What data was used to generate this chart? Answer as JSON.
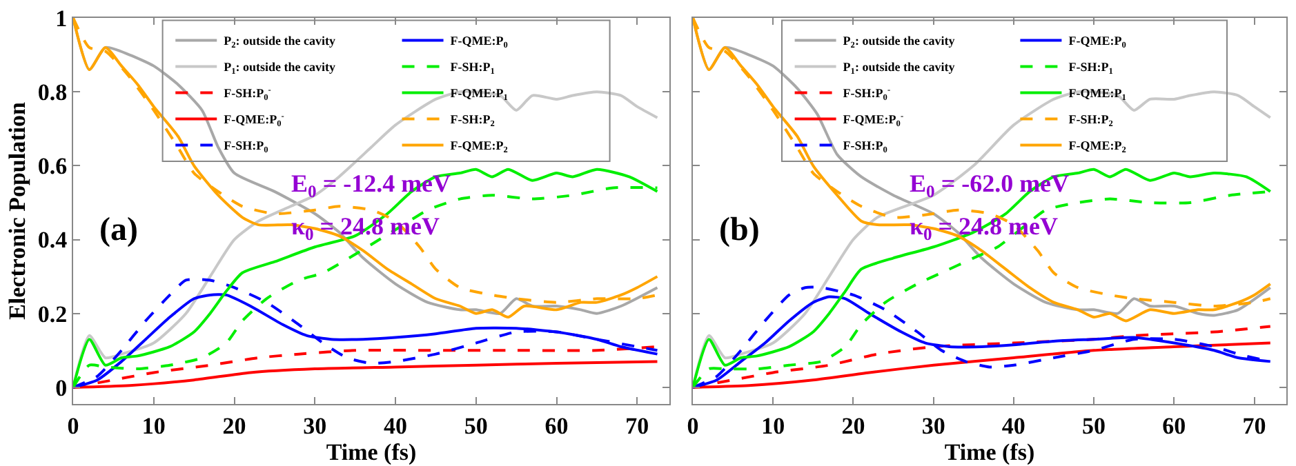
{
  "chart_data": [
    {
      "type": "line",
      "xlabel": "Time (fs)",
      "ylabel": "Electronic Population",
      "xlim": [
        0,
        74
      ],
      "ylim": [
        -0.045,
        1
      ],
      "xticks": [
        0,
        10,
        20,
        30,
        40,
        50,
        60,
        70
      ],
      "yticks": [
        0,
        0.2,
        0.4,
        0.6,
        0.8,
        1
      ],
      "legend": "top",
      "annotations": [
        "E$_{0}$ = -12.4 meV",
        "κ$_{0}$ = 24.8 meV",
        "(a)"
      ],
      "series": [
        {
          "name": "P$_{2}$: outside the cavity",
          "color": "#a8a8a8",
          "line_style": "solid",
          "x": [
            0,
            2,
            4,
            7,
            10,
            13,
            16,
            18,
            20,
            25,
            30,
            33,
            36,
            40,
            44,
            48,
            50,
            53,
            55,
            57,
            60,
            63,
            65,
            68,
            72.5
          ],
          "values": [
            1,
            0.86,
            0.92,
            0.9,
            0.87,
            0.82,
            0.75,
            0.65,
            0.58,
            0.53,
            0.47,
            0.42,
            0.35,
            0.28,
            0.23,
            0.21,
            0.21,
            0.2,
            0.24,
            0.22,
            0.22,
            0.21,
            0.2,
            0.22,
            0.27
          ]
        },
        {
          "name": "P$_{1}$: outside the cavity",
          "color": "#c8c8c8",
          "line_style": "solid",
          "x": [
            0,
            2,
            4,
            6,
            10,
            14,
            17,
            20,
            23,
            27,
            30,
            33,
            37,
            40,
            45,
            48,
            50,
            53,
            55,
            57,
            60,
            62,
            65,
            68,
            70,
            72.5
          ],
          "values": [
            0,
            0.14,
            0.08,
            0.09,
            0.12,
            0.2,
            0.3,
            0.4,
            0.45,
            0.49,
            0.52,
            0.57,
            0.65,
            0.71,
            0.78,
            0.8,
            0.8,
            0.79,
            0.75,
            0.79,
            0.78,
            0.79,
            0.8,
            0.79,
            0.76,
            0.73
          ]
        },
        {
          "name": "F-SH:P$_{0}$$^{-}$",
          "color": "#ff0000",
          "line_style": "dashed",
          "x": [
            0,
            5,
            10,
            17,
            23,
            28,
            35,
            45,
            55,
            65,
            72.5
          ],
          "values": [
            0,
            0.02,
            0.04,
            0.06,
            0.08,
            0.09,
            0.1,
            0.1,
            0.1,
            0.1,
            0.11
          ]
        },
        {
          "name": "F-QME:P$_{0}$$^{-}$",
          "color": "#ff0000",
          "line_style": "solid",
          "x": [
            0,
            7,
            15,
            22,
            30,
            40,
            50,
            60,
            72.5
          ],
          "values": [
            0,
            0.005,
            0.02,
            0.04,
            0.05,
            0.055,
            0.06,
            0.065,
            0.07
          ]
        },
        {
          "name": "F-SH:P$_{0}$",
          "color": "#0000ff",
          "line_style": "dashed",
          "x": [
            0,
            3,
            6,
            9,
            12,
            14,
            17,
            20,
            24,
            28,
            31,
            34,
            37,
            40,
            45,
            50,
            55,
            60,
            65,
            70,
            72.5
          ],
          "values": [
            0,
            0.03,
            0.1,
            0.18,
            0.25,
            0.29,
            0.29,
            0.27,
            0.23,
            0.17,
            0.12,
            0.08,
            0.065,
            0.07,
            0.09,
            0.12,
            0.15,
            0.15,
            0.13,
            0.11,
            0.1
          ]
        },
        {
          "name": "F-QME:P$_{0}$",
          "color": "#0000ff",
          "line_style": "solid",
          "x": [
            0,
            3,
            6,
            9,
            12,
            15,
            17,
            19,
            22,
            26,
            29,
            32,
            36,
            40,
            45,
            50,
            55,
            60,
            65,
            68,
            72.5
          ],
          "values": [
            0,
            0.02,
            0.07,
            0.13,
            0.19,
            0.24,
            0.25,
            0.25,
            0.22,
            0.17,
            0.14,
            0.13,
            0.13,
            0.135,
            0.145,
            0.16,
            0.16,
            0.15,
            0.13,
            0.11,
            0.09
          ]
        },
        {
          "name": "F-SH:P$_{1}$",
          "color": "#00ee00",
          "line_style": "dashed",
          "x": [
            0,
            2,
            4,
            8,
            12,
            16,
            19,
            21,
            24,
            28,
            31,
            35,
            38,
            41,
            44,
            48,
            52,
            57,
            62,
            67,
            72.5
          ],
          "values": [
            0,
            0.06,
            0.055,
            0.05,
            0.06,
            0.08,
            0.12,
            0.18,
            0.24,
            0.29,
            0.31,
            0.36,
            0.4,
            0.44,
            0.48,
            0.51,
            0.52,
            0.51,
            0.52,
            0.54,
            0.54
          ]
        },
        {
          "name": "F-QME:P$_{1}$",
          "color": "#00ee00",
          "line_style": "solid",
          "x": [
            0,
            2,
            4,
            6,
            8,
            12,
            15,
            17,
            19,
            21,
            25,
            30,
            35,
            39,
            42,
            45,
            48,
            50,
            52,
            54,
            57,
            60,
            62,
            65,
            69,
            72.5
          ],
          "values": [
            0,
            0.13,
            0.06,
            0.08,
            0.085,
            0.11,
            0.15,
            0.2,
            0.26,
            0.31,
            0.34,
            0.38,
            0.41,
            0.47,
            0.53,
            0.57,
            0.58,
            0.59,
            0.57,
            0.59,
            0.56,
            0.58,
            0.57,
            0.59,
            0.57,
            0.53
          ]
        },
        {
          "name": "F-SH:P$_{2}$",
          "color": "#ffa500",
          "line_style": "dashed",
          "x": [
            0,
            2,
            4,
            7,
            10,
            13,
            15,
            18,
            21,
            25,
            30,
            33,
            37,
            40,
            43,
            45,
            48,
            52,
            55,
            60,
            65,
            70,
            72.5
          ],
          "values": [
            1,
            0.92,
            0.91,
            0.84,
            0.75,
            0.65,
            0.58,
            0.53,
            0.49,
            0.47,
            0.48,
            0.49,
            0.48,
            0.45,
            0.38,
            0.32,
            0.27,
            0.25,
            0.24,
            0.23,
            0.24,
            0.24,
            0.25
          ]
        },
        {
          "name": "F-QME:P$_{2}$",
          "color": "#ffa500",
          "line_style": "solid",
          "x": [
            0,
            2,
            4,
            6,
            8,
            10,
            13,
            15,
            18,
            21,
            23,
            27,
            30,
            33,
            36,
            39,
            42,
            45,
            48,
            50,
            52,
            54,
            56,
            60,
            63,
            65,
            68,
            70,
            72.5
          ],
          "values": [
            1,
            0.86,
            0.92,
            0.87,
            0.82,
            0.76,
            0.68,
            0.6,
            0.52,
            0.46,
            0.44,
            0.44,
            0.43,
            0.41,
            0.37,
            0.32,
            0.28,
            0.24,
            0.22,
            0.2,
            0.21,
            0.19,
            0.22,
            0.21,
            0.23,
            0.23,
            0.25,
            0.27,
            0.3
          ]
        }
      ]
    },
    {
      "type": "line",
      "xlabel": "Time (fs)",
      "xlim": [
        0,
        74
      ],
      "ylim": [
        -0.045,
        1
      ],
      "xticks": [
        0,
        10,
        20,
        30,
        40,
        50,
        60,
        70
      ],
      "yticks": [
        {
          "value": 0,
          "label": null
        },
        {
          "value": 0.2,
          "label": null
        },
        {
          "value": 0.4,
          "label": null
        },
        {
          "value": 0.6,
          "label": null
        },
        {
          "value": 0.8,
          "label": null
        },
        {
          "value": 1,
          "label": null
        }
      ],
      "tick_labels": "x",
      "legend": "top",
      "annotations": [
        "E$_{0}$ = -62.0 meV",
        "κ$_{0}$ = 24.8 meV",
        "(b)"
      ],
      "series": [
        {
          "name": "P$_{2}$: outside the cavity",
          "color": "#a8a8a8",
          "line_style": "solid",
          "x": [
            0,
            2,
            4,
            7,
            10,
            13,
            15.5,
            18,
            21,
            25,
            30,
            33,
            36,
            40,
            44,
            48,
            50,
            53,
            55,
            57,
            60,
            63,
            65,
            68,
            72
          ],
          "values": [
            1,
            0.86,
            0.92,
            0.9,
            0.87,
            0.81,
            0.74,
            0.63,
            0.57,
            0.52,
            0.47,
            0.42,
            0.35,
            0.28,
            0.23,
            0.21,
            0.21,
            0.2,
            0.24,
            0.22,
            0.22,
            0.2,
            0.195,
            0.21,
            0.27
          ]
        },
        {
          "name": "P$_{1}$: outside the cavity",
          "color": "#c8c8c8",
          "line_style": "solid",
          "x": [
            0,
            2,
            4,
            6,
            10,
            14,
            17,
            20,
            23,
            30,
            35,
            40,
            45,
            48,
            50,
            53,
            55,
            57,
            60,
            62,
            65,
            68,
            70,
            72
          ],
          "values": [
            0,
            0.14,
            0.08,
            0.09,
            0.12,
            0.2,
            0.3,
            0.4,
            0.46,
            0.52,
            0.6,
            0.71,
            0.78,
            0.8,
            0.8,
            0.79,
            0.75,
            0.78,
            0.78,
            0.79,
            0.8,
            0.79,
            0.76,
            0.73
          ]
        },
        {
          "name": "F-SH:P$_{0}$$^{-}$",
          "color": "#ff0000",
          "line_style": "dashed",
          "x": [
            0,
            5,
            10,
            17,
            23,
            30,
            40,
            50,
            55,
            65,
            72
          ],
          "values": [
            0,
            0.02,
            0.04,
            0.06,
            0.09,
            0.11,
            0.12,
            0.13,
            0.14,
            0.15,
            0.165
          ]
        },
        {
          "name": "F-QME:P$_{0}$$^{-}$",
          "color": "#ff0000",
          "line_style": "solid",
          "x": [
            0,
            7,
            15,
            22,
            30,
            40,
            50,
            60,
            72
          ],
          "values": [
            0,
            0.005,
            0.02,
            0.04,
            0.06,
            0.08,
            0.1,
            0.11,
            0.12
          ]
        },
        {
          "name": "F-SH:P$_{0}$",
          "color": "#0000ff",
          "line_style": "dashed",
          "x": [
            0,
            3,
            6,
            9,
            12,
            14,
            16,
            20,
            24,
            28,
            31,
            34,
            37,
            40,
            45,
            50,
            55,
            60,
            65,
            68,
            72
          ],
          "values": [
            0,
            0.03,
            0.1,
            0.18,
            0.25,
            0.27,
            0.27,
            0.25,
            0.21,
            0.15,
            0.1,
            0.07,
            0.055,
            0.06,
            0.08,
            0.1,
            0.13,
            0.13,
            0.11,
            0.09,
            0.07
          ]
        },
        {
          "name": "F-QME:P$_{0}$",
          "color": "#0000ff",
          "line_style": "solid",
          "x": [
            0,
            3,
            6,
            9,
            12,
            15,
            17,
            19,
            22,
            26,
            29,
            32,
            36,
            40,
            45,
            50,
            55,
            60,
            65,
            68,
            72
          ],
          "values": [
            0,
            0.02,
            0.07,
            0.12,
            0.18,
            0.23,
            0.245,
            0.24,
            0.2,
            0.15,
            0.12,
            0.11,
            0.11,
            0.115,
            0.125,
            0.13,
            0.135,
            0.12,
            0.1,
            0.08,
            0.07
          ]
        },
        {
          "name": "F-SH:P$_{1}$",
          "color": "#00ee00",
          "line_style": "dashed",
          "x": [
            0,
            2,
            4,
            8,
            12,
            16,
            19,
            21,
            24,
            28,
            31,
            35,
            38,
            41,
            44,
            48,
            52,
            57,
            62,
            67,
            72
          ],
          "values": [
            0,
            0.05,
            0.05,
            0.05,
            0.06,
            0.07,
            0.11,
            0.17,
            0.23,
            0.28,
            0.31,
            0.35,
            0.38,
            0.43,
            0.48,
            0.5,
            0.51,
            0.5,
            0.5,
            0.52,
            0.53
          ]
        },
        {
          "name": "F-QME:P$_{1}$",
          "color": "#00ee00",
          "line_style": "solid",
          "x": [
            0,
            2,
            4,
            6,
            8,
            12,
            15,
            17,
            19,
            21,
            25,
            30,
            35,
            39,
            42,
            45,
            48,
            50,
            52,
            54,
            57,
            60,
            62,
            65,
            69,
            72
          ],
          "values": [
            0,
            0.13,
            0.06,
            0.08,
            0.085,
            0.11,
            0.15,
            0.2,
            0.26,
            0.32,
            0.35,
            0.38,
            0.42,
            0.47,
            0.53,
            0.57,
            0.58,
            0.59,
            0.57,
            0.59,
            0.56,
            0.58,
            0.57,
            0.58,
            0.57,
            0.53
          ]
        },
        {
          "name": "F-SH:P$_{2}$",
          "color": "#ffa500",
          "line_style": "dashed",
          "x": [
            0,
            2,
            4,
            7,
            10,
            13,
            15,
            18,
            21,
            25,
            30,
            33,
            37,
            40,
            43,
            45,
            48,
            52,
            55,
            60,
            65,
            70,
            72
          ],
          "values": [
            1,
            0.92,
            0.91,
            0.84,
            0.75,
            0.65,
            0.58,
            0.53,
            0.49,
            0.46,
            0.47,
            0.48,
            0.47,
            0.44,
            0.37,
            0.31,
            0.27,
            0.25,
            0.24,
            0.23,
            0.22,
            0.23,
            0.24
          ]
        },
        {
          "name": "F-QME:P$_{2}$",
          "color": "#ffa500",
          "line_style": "solid",
          "x": [
            0,
            2,
            4,
            6,
            8,
            10,
            13,
            15,
            18,
            21,
            23,
            27,
            30,
            33,
            36,
            39,
            42,
            45,
            48,
            50,
            52,
            54,
            57,
            60,
            63,
            65,
            68,
            70,
            72
          ],
          "values": [
            1,
            0.86,
            0.92,
            0.87,
            0.82,
            0.76,
            0.68,
            0.6,
            0.52,
            0.45,
            0.44,
            0.44,
            0.43,
            0.41,
            0.37,
            0.32,
            0.27,
            0.23,
            0.21,
            0.19,
            0.2,
            0.18,
            0.21,
            0.2,
            0.21,
            0.21,
            0.23,
            0.25,
            0.28
          ]
        }
      ]
    }
  ]
}
